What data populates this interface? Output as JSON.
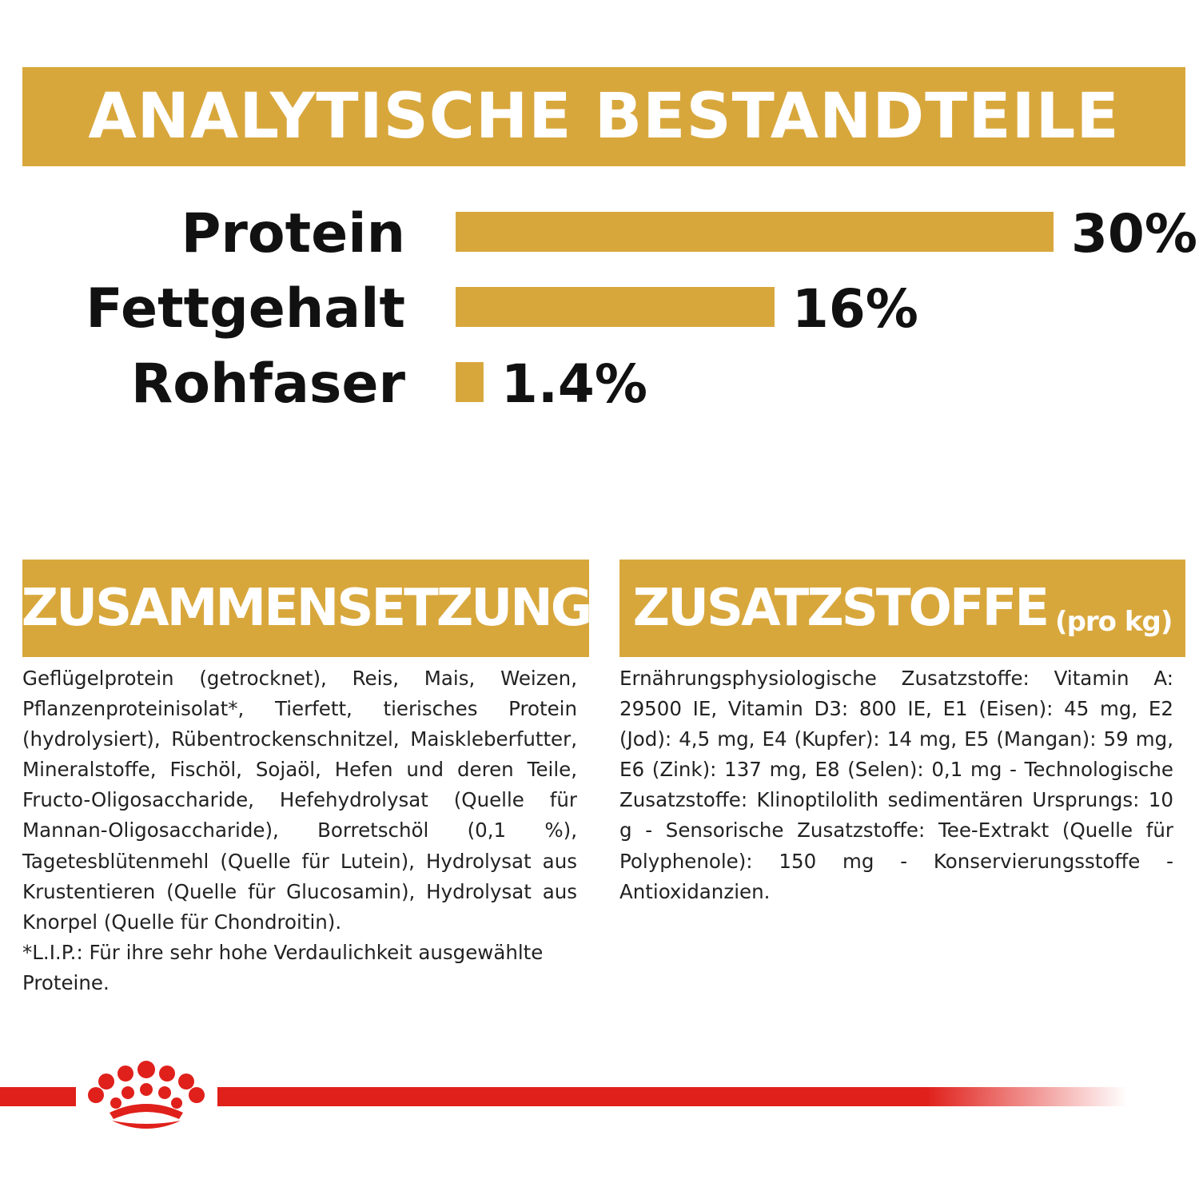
{
  "header": {
    "title": "ANALYTISCHE BESTANDTEILE"
  },
  "chart_data": {
    "type": "bar",
    "orientation": "horizontal",
    "title": "ANALYTISCHE BESTANDTEILE",
    "categories": [
      "Protein",
      "Fettgehalt",
      "Rohfaser"
    ],
    "values": [
      30,
      16,
      1.4
    ],
    "value_labels": [
      "30%",
      "16%",
      "1.4%"
    ],
    "unit": "%",
    "xlim": [
      0,
      30
    ],
    "grid": false,
    "bar_color": "#d8a73c"
  },
  "composition": {
    "title": "ZUSAMMENSETZUNG",
    "text": "Geflügelprotein (getrocknet), Reis, Mais, Weizen, Pflanzenproteinisolat*, Tierfett, tierisches Protein (hydrolysiert), Rübentrockenschnitzel, Maiskleberfutter, Mineralstoffe, Fischöl, Sojaöl, Hefen und deren Teile, Fructo-Oligosaccharide, Hefehydrolysat (Quelle für Mannan-Oligosaccharide), Borretschöl (0,1 %), Tagetesblütenmehl (Quelle für Lutein), Hydrolysat aus Krustentieren (Quelle für Glucosamin), Hydrolysat aus Knorpel (Quelle für Chondroitin).",
    "footnote": "*L.I.P.: Für ihre sehr hohe Verdaulichkeit ausgewählte Proteine."
  },
  "additives": {
    "title": "ZUSATZSTOFFE",
    "title_suffix": "(pro kg)",
    "text": "Ernährungsphysiologische Zusatzstoffe: Vitamin A: 29500 IE, Vitamin D3: 800 IE, E1 (Eisen): 45 mg, E2 (Jod): 4,5 mg, E4 (Kupfer): 14 mg, E5 (Mangan): 59 mg, E6 (Zink): 137 mg, E8 (Selen): 0,1 mg - Technologische Zusatzstoffe: Klinoptilolith sedimentären Ursprungs: 10 g - Sensorische Zusatzstoffe: Tee-Extrakt (Quelle für Polyphenole): 150 mg - Konservierungsstoffe - Antioxidanzien."
  },
  "brand": {
    "logo": "crown-logo",
    "rule_color": "#e0201b"
  }
}
